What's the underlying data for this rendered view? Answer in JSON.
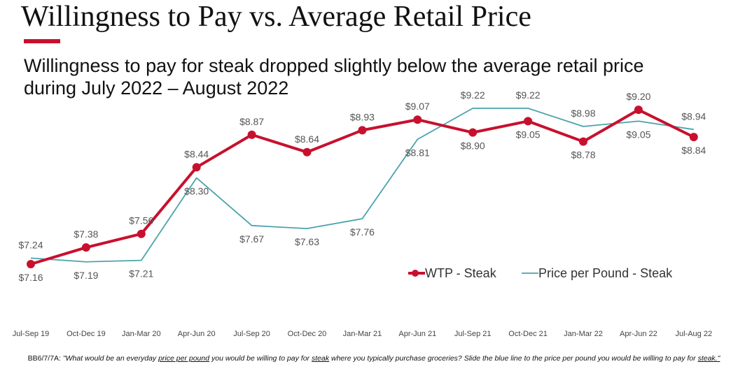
{
  "chart_data": {
    "type": "line",
    "title": "Willingness to Pay vs. Average Retail Price",
    "subtitle": "Willingness to pay for steak dropped slightly below the average retail price during July 2022 – August 2022",
    "categories": [
      "Jul-Sep 19",
      "Oct-Dec 19",
      "Jan-Mar 20",
      "Apr-Jun 20",
      "Jul-Sep 20",
      "Oct-Dec 20",
      "Jan-Mar 21",
      "Apr-Jun 21",
      "Jul-Sep 21",
      "Oct-Dec 21",
      "Jan-Mar 22",
      "Apr-Jun 22",
      "Jul-Aug 22"
    ],
    "series": [
      {
        "name": "WTP - Steak",
        "color": "#c8102e",
        "values": [
          7.16,
          7.38,
          7.56,
          8.44,
          8.87,
          8.64,
          8.93,
          9.07,
          8.9,
          9.05,
          8.78,
          9.2,
          8.84
        ],
        "value_labels": [
          "$7.16",
          "$7.38",
          "$7.56",
          "$8.44",
          "$8.87",
          "$8.64",
          "$8.93",
          "$9.07",
          "$8.90",
          "$9.05",
          "$8.78",
          "$9.20",
          "$8.84"
        ]
      },
      {
        "name": "Price per Pound - Steak",
        "color": "#4aa3ad",
        "values": [
          7.24,
          7.19,
          7.21,
          8.3,
          7.67,
          7.63,
          7.76,
          8.81,
          9.22,
          9.22,
          8.98,
          9.05,
          8.94
        ],
        "value_labels": [
          "$7.24",
          "$7.19",
          "$7.21",
          "$8.30",
          "$7.67",
          "$7.63",
          "$7.76",
          "$8.81",
          "$9.22",
          "$9.22",
          "$8.98",
          "$9.05",
          "$8.94"
        ]
      }
    ],
    "footnote": [
      {
        "text": "BB6/7/7A: "
      },
      {
        "text": "\"What would be an everyday ",
        "italic": true
      },
      {
        "text": "price per pound",
        "italic": true,
        "underline": true
      },
      {
        "text": " you would be willing to pay for ",
        "italic": true
      },
      {
        "text": "steak",
        "italic": true,
        "underline": true
      },
      {
        "text": " where you typically purchase groceries? Slide the blue line to the price per pound you would be willing to pay for ",
        "italic": true
      },
      {
        "text": "steak.\"",
        "italic": true,
        "underline": true
      }
    ]
  }
}
